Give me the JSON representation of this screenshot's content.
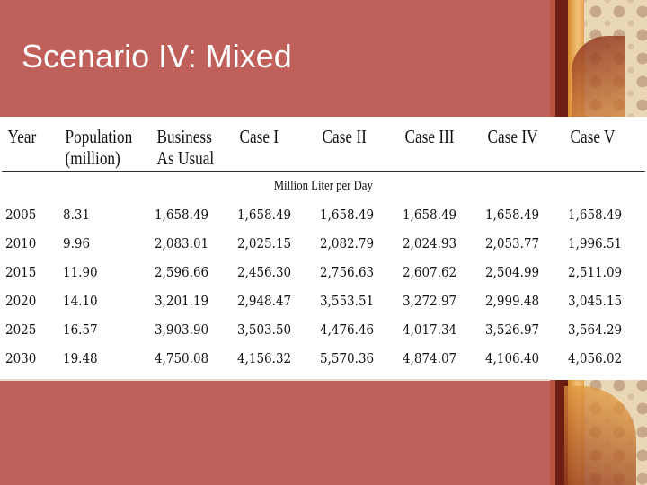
{
  "slide": {
    "title": "Scenario IV: Mixed",
    "colors": {
      "background": "#c0605a",
      "title_text": "#ffffff",
      "table_bg": "#ffffff",
      "decor_accent": "#d98a2b"
    }
  },
  "table": {
    "headers": [
      "Year",
      "Population (million)",
      "Business As Usual",
      "Case I",
      "Case II",
      "Case III",
      "Case IV",
      "Case V"
    ],
    "units_label": "Million Liter per Day",
    "rows": [
      {
        "year": "2005",
        "population": "8.31",
        "values": [
          "1,658.49",
          "1,658.49",
          "1,658.49",
          "1,658.49",
          "1,658.49",
          "1,658.49"
        ]
      },
      {
        "year": "2010",
        "population": "9.96",
        "values": [
          "2,083.01",
          "2,025.15",
          "2,082.79",
          "2,024.93",
          "2,053.77",
          "1,996.51"
        ]
      },
      {
        "year": "2015",
        "population": "11.90",
        "values": [
          "2,596.66",
          "2,456.30",
          "2,756.63",
          "2,607.62",
          "2,504.99",
          "2,511.09"
        ]
      },
      {
        "year": "2020",
        "population": "14.10",
        "values": [
          "3,201.19",
          "2,948.47",
          "3,553.51",
          "3,272.97",
          "2,999.48",
          "3,045.15"
        ]
      },
      {
        "year": "2025",
        "population": "16.57",
        "values": [
          "3,903.90",
          "3,503.50",
          "4,476.46",
          "4,017.34",
          "3,526.97",
          "3,564.29"
        ]
      },
      {
        "year": "2030",
        "population": "19.48",
        "values": [
          "4,750.08",
          "4,156.32",
          "5,570.36",
          "4,874.07",
          "4,106.40",
          "4,056.02"
        ]
      }
    ]
  }
}
